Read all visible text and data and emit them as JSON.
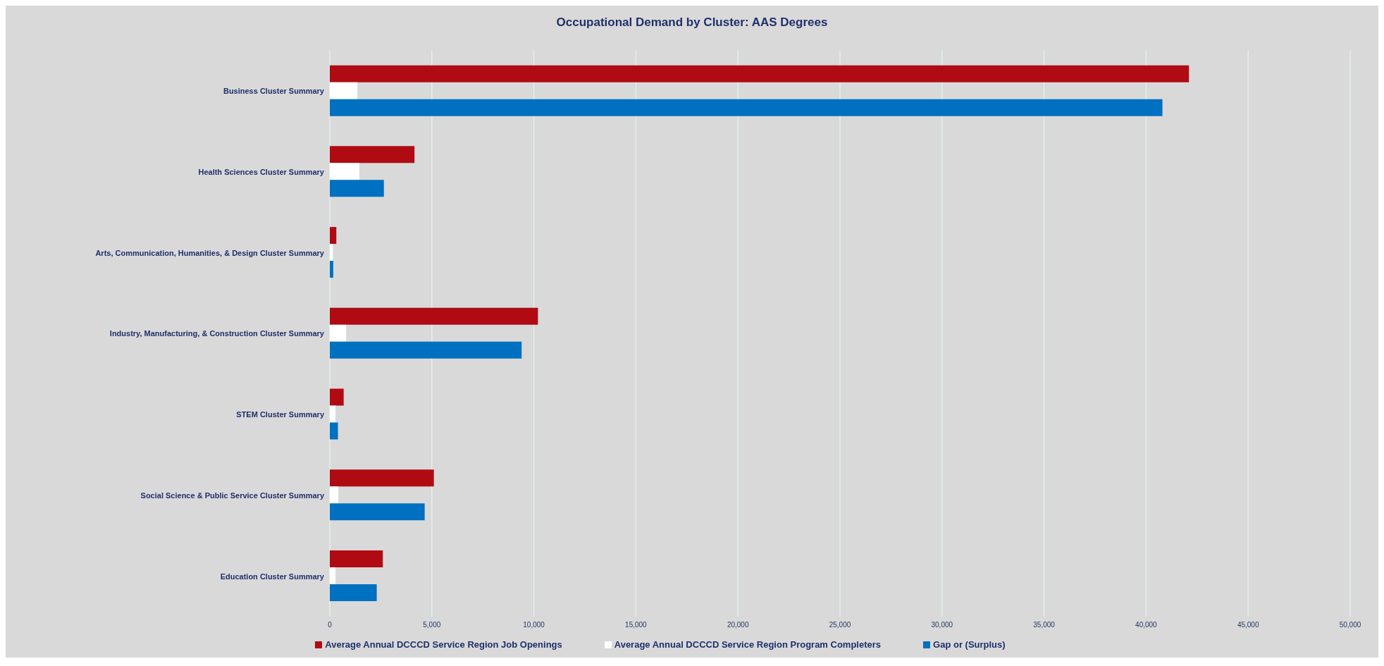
{
  "chart_data": {
    "type": "bar",
    "orientation": "horizontal",
    "title": "Occupational Demand by Cluster: AAS Degrees",
    "categories": [
      "Business Cluster Summary",
      "Health Sciences Cluster Summary",
      "Arts, Communication, Humanities, & Design Cluster Summary",
      "Industry, Manufacturing, & Construction Cluster Summary",
      "STEM Cluster Summary",
      "Social Science & Public Service Cluster Summary",
      "Education Cluster Summary"
    ],
    "series": [
      {
        "name": "Average Annual DCCCD Service Region Job Openings",
        "color": "#b00b13",
        "values": [
          42100,
          4150,
          320,
          10200,
          680,
          5100,
          2600
        ]
      },
      {
        "name": "Average Annual DCCCD Service Region Program Completers",
        "color": "#ffffff",
        "values": [
          1350,
          1450,
          150,
          800,
          280,
          420,
          280
        ]
      },
      {
        "name": "Gap or (Surplus)",
        "color": "#0070c0",
        "values": [
          40800,
          2650,
          170,
          9400,
          400,
          4650,
          2300
        ]
      }
    ],
    "xlim": [
      0,
      50000
    ],
    "xticks": [
      {
        "value": 0,
        "label": "0"
      },
      {
        "value": 5000,
        "label": "5,000"
      },
      {
        "value": 10000,
        "label": "10,000"
      },
      {
        "value": 15000,
        "label": "15,000"
      },
      {
        "value": 20000,
        "label": "20,000"
      },
      {
        "value": 25000,
        "label": "25,000"
      },
      {
        "value": 30000,
        "label": "30,000"
      },
      {
        "value": 35000,
        "label": "35,000"
      },
      {
        "value": 40000,
        "label": "40,000"
      },
      {
        "value": 45000,
        "label": "45,000"
      },
      {
        "value": 50000,
        "label": "50,000"
      }
    ],
    "grid": "x",
    "legend": "bottom"
  }
}
